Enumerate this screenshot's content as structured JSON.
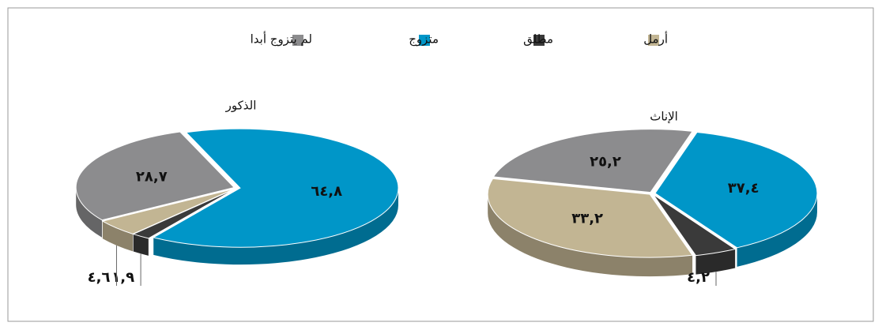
{
  "legend": {
    "categories": [
      "أرمل",
      "مطلق",
      "متزوج",
      "لم يتزوج أبدا"
    ],
    "colors": [
      "#c2b593",
      "#3a3a3a",
      "#0096c8",
      "#8c8c8e"
    ]
  },
  "chart_data": [
    {
      "type": "pie",
      "title": "الذكور",
      "values": [
        4.6,
        1.9,
        64.8,
        28.7
      ],
      "value_labels": [
        "٤,٦",
        "١,٩",
        "٦٤,٨",
        "٢٨,٧"
      ]
    },
    {
      "type": "pie",
      "title": "الإناث",
      "values": [
        33.2,
        4.2,
        37.4,
        25.2
      ],
      "value_labels": [
        "٣٣,٢",
        "٤,٢",
        "٣٧,٤",
        "٢٥,٢"
      ]
    }
  ]
}
